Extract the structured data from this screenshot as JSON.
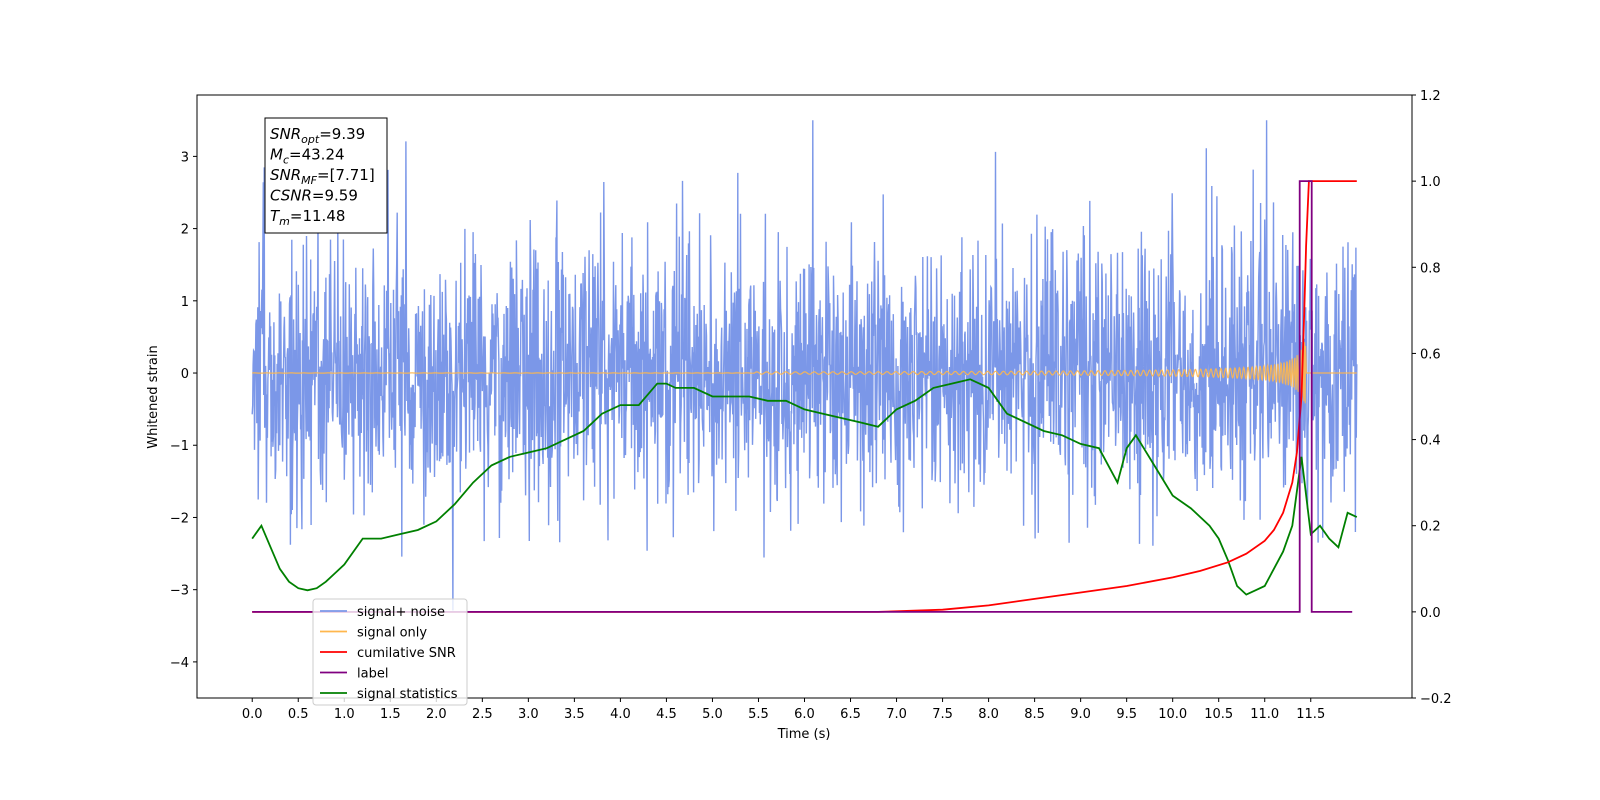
{
  "chart_data": {
    "type": "line",
    "title": "",
    "xlabel": "Time (s)",
    "ylabel": "Whitened strain",
    "ylabel_right": "",
    "xlim": [
      -0.6,
      12.6
    ],
    "ylim": [
      -4.5,
      3.85
    ],
    "ylim_right": [
      -0.2,
      1.2
    ],
    "x_ticks": [
      "0.0",
      "0.5",
      "1.0",
      "1.5",
      "2.0",
      "2.5",
      "3.0",
      "3.5",
      "4.0",
      "4.5",
      "5.0",
      "5.5",
      "6.0",
      "6.5",
      "7.0",
      "7.5",
      "8.0",
      "8.5",
      "9.0",
      "9.5",
      "10.0",
      "10.5",
      "11.0",
      "11.5"
    ],
    "y_ticks": [
      "3",
      "2",
      "1",
      "0",
      "−1",
      "−2",
      "−3",
      "−4"
    ],
    "y_ticks_right": [
      "1.2",
      "1.0",
      "0.8",
      "0.6",
      "0.4",
      "0.2",
      "0.0",
      "−0.2"
    ],
    "grid": false,
    "legend_position": "lower-left",
    "annotation": [
      {
        "base": "SNR",
        "sub": "opt",
        "value": "=9.39"
      },
      {
        "base": "M",
        "sub": "c",
        "value": "=43.24"
      },
      {
        "base": "SNR",
        "sub": "MF",
        "value": "=[7.71]"
      },
      {
        "base": "CSNR",
        "sub": "",
        "value": "=9.59"
      },
      {
        "base": "T",
        "sub": "m",
        "value": "=11.48"
      }
    ],
    "series": [
      {
        "name": "signal+ noise",
        "color": "#7b97e8",
        "axis": "left",
        "description": "white noise, amplitude ~ ±2 with spikes to ±3.5, sampled from 0 to 12 s"
      },
      {
        "name": "signal only",
        "color": "#ffb74d",
        "axis": "left",
        "description": "chirp, near zero, growing to ±0.8 at ~11.45 s then zero"
      },
      {
        "name": "cumilative SNR",
        "color": "#ff0000",
        "axis": "right",
        "x": [
          0,
          6.8,
          7.5,
          8.0,
          8.5,
          9.0,
          9.5,
          10.0,
          10.3,
          10.6,
          10.8,
          11.0,
          11.1,
          11.2,
          11.3,
          11.35,
          11.4,
          11.43,
          11.45,
          11.48,
          11.5,
          12.0
        ],
        "values": [
          0,
          0,
          0.005,
          0.015,
          0.03,
          0.045,
          0.06,
          0.08,
          0.095,
          0.115,
          0.135,
          0.165,
          0.19,
          0.23,
          0.3,
          0.37,
          0.5,
          0.7,
          0.85,
          1.0,
          1.0,
          1.0
        ]
      },
      {
        "name": "label",
        "color": "#800080",
        "axis": "right",
        "x": [
          0,
          11.38,
          11.38,
          11.51,
          11.51,
          11.95
        ],
        "values": [
          0,
          0,
          1.0,
          1.0,
          0,
          0
        ]
      },
      {
        "name": "signal statistics",
        "color": "#008000",
        "axis": "right",
        "x": [
          0,
          0.1,
          0.2,
          0.3,
          0.4,
          0.5,
          0.6,
          0.7,
          0.8,
          0.9,
          1.0,
          1.2,
          1.4,
          1.6,
          1.8,
          2.0,
          2.2,
          2.4,
          2.6,
          2.8,
          3.0,
          3.2,
          3.4,
          3.6,
          3.8,
          4.0,
          4.2,
          4.4,
          4.5,
          4.6,
          4.8,
          5.0,
          5.2,
          5.4,
          5.6,
          5.8,
          6.0,
          6.2,
          6.4,
          6.6,
          6.8,
          7.0,
          7.2,
          7.4,
          7.6,
          7.8,
          7.9,
          8.0,
          8.2,
          8.4,
          8.6,
          8.8,
          9.0,
          9.2,
          9.4,
          9.5,
          9.6,
          9.8,
          10.0,
          10.2,
          10.4,
          10.5,
          10.6,
          10.7,
          10.8,
          10.9,
          11.0,
          11.1,
          11.2,
          11.3,
          11.4,
          11.5,
          11.6,
          11.7,
          11.8,
          11.9,
          12.0
        ],
        "values": [
          0.17,
          0.2,
          0.15,
          0.1,
          0.07,
          0.055,
          0.05,
          0.055,
          0.07,
          0.09,
          0.11,
          0.17,
          0.17,
          0.18,
          0.19,
          0.21,
          0.25,
          0.3,
          0.34,
          0.36,
          0.37,
          0.38,
          0.4,
          0.42,
          0.46,
          0.48,
          0.48,
          0.53,
          0.53,
          0.52,
          0.52,
          0.5,
          0.5,
          0.5,
          0.49,
          0.49,
          0.47,
          0.46,
          0.45,
          0.44,
          0.43,
          0.47,
          0.49,
          0.52,
          0.53,
          0.54,
          0.53,
          0.52,
          0.46,
          0.44,
          0.42,
          0.41,
          0.39,
          0.38,
          0.3,
          0.38,
          0.41,
          0.34,
          0.27,
          0.24,
          0.2,
          0.17,
          0.12,
          0.06,
          0.04,
          0.05,
          0.06,
          0.1,
          0.14,
          0.2,
          0.36,
          0.18,
          0.2,
          0.17,
          0.15,
          0.23,
          0.22
        ]
      }
    ]
  }
}
